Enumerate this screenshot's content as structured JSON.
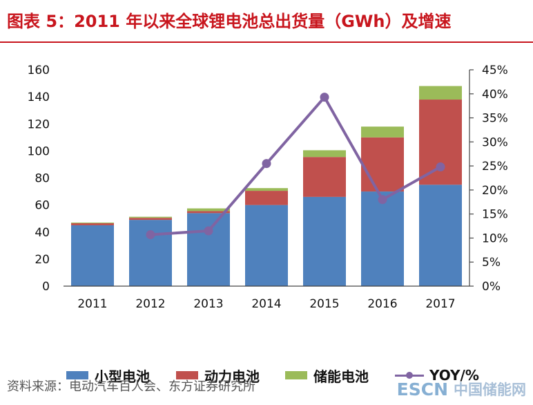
{
  "header": {
    "figure_label": "图表 5：",
    "title_text": "2011 年以来全球锂电池总出货量（GWh）及增速"
  },
  "chart_data": {
    "type": "bar",
    "stacked": true,
    "categories": [
      "2011",
      "2012",
      "2013",
      "2014",
      "2015",
      "2016",
      "2017"
    ],
    "series": [
      {
        "name": "小型电池",
        "values": [
          45,
          49,
          54,
          60,
          66,
          70,
          75
        ],
        "color": "#4f81bd"
      },
      {
        "name": "动力电池",
        "values": [
          1.5,
          1.5,
          1.5,
          10.5,
          29.5,
          40,
          63
        ],
        "color": "#c0504d"
      },
      {
        "name": "储能电池",
        "values": [
          0.5,
          0.8,
          2,
          2,
          5,
          8,
          10
        ],
        "color": "#9bbb59"
      }
    ],
    "line_series": {
      "name": "YOY/%",
      "axis": "right",
      "values": [
        null,
        10.7,
        11.5,
        25.5,
        39.3,
        18,
        24.8
      ],
      "color": "#8064a2"
    },
    "y_left": {
      "min": 0,
      "max": 160,
      "ticks": [
        "0",
        "20",
        "40",
        "60",
        "80",
        "100",
        "120",
        "140",
        "160"
      ]
    },
    "y_right": {
      "min": 0,
      "max": 45,
      "ticks": [
        "0%",
        "5%",
        "10%",
        "15%",
        "20%",
        "25%",
        "30%",
        "35%",
        "40%",
        "45%"
      ]
    },
    "legend": [
      "小型电池",
      "动力电池",
      "储能电池",
      "YOY/%"
    ]
  },
  "footer": {
    "source": "资料来源：电动汽车百人会、东方证券研究所",
    "watermark_brand": "ESCN",
    "watermark_cn": "中国储能网"
  }
}
